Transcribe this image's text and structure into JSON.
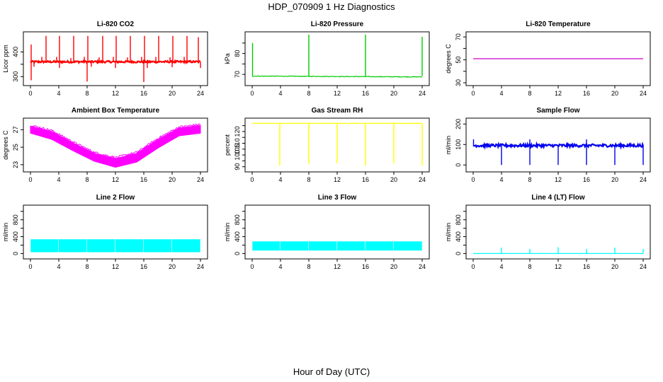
{
  "figure": {
    "title": "HDP_070909  1 Hz Diagnostics",
    "xlabel": "Hour of Day (UTC)"
  },
  "chart_data": [
    {
      "type": "line",
      "title": "Li-820 CO2",
      "ylabel": "Licor ppm",
      "xlim": [
        0,
        24
      ],
      "ylim": [
        275,
        470
      ],
      "xticks": [
        0,
        4,
        8,
        12,
        16,
        20,
        24
      ],
      "yticks": [
        300,
        350,
        400
      ],
      "ytick_labels": [
        "300",
        "",
        "400"
      ],
      "color": "#ff0000",
      "pattern": "baseline_spikes",
      "baseline": 360,
      "noise": 4,
      "spikes_up": [
        {
          "x": 0.1,
          "y": 430
        },
        {
          "x": 1.6,
          "y": 380
        },
        {
          "x": 2.2,
          "y": 465
        },
        {
          "x": 3.7,
          "y": 380
        },
        {
          "x": 4.1,
          "y": 465
        },
        {
          "x": 5.7,
          "y": 375
        },
        {
          "x": 6.1,
          "y": 465
        },
        {
          "x": 7.6,
          "y": 380
        },
        {
          "x": 8.1,
          "y": 465
        },
        {
          "x": 9.7,
          "y": 378
        },
        {
          "x": 10.2,
          "y": 465
        },
        {
          "x": 11.7,
          "y": 380
        },
        {
          "x": 12.1,
          "y": 465
        },
        {
          "x": 13.7,
          "y": 378
        },
        {
          "x": 14.1,
          "y": 465
        },
        {
          "x": 15.7,
          "y": 380
        },
        {
          "x": 16.1,
          "y": 465
        },
        {
          "x": 17.7,
          "y": 380
        },
        {
          "x": 18.1,
          "y": 465
        },
        {
          "x": 19.7,
          "y": 378
        },
        {
          "x": 20.1,
          "y": 465
        },
        {
          "x": 21.7,
          "y": 380
        },
        {
          "x": 22.1,
          "y": 465
        },
        {
          "x": 23.7,
          "y": 460
        }
      ],
      "spikes_down": [
        {
          "x": 0.1,
          "y": 285
        },
        {
          "x": 0.5,
          "y": 340
        },
        {
          "x": 4.1,
          "y": 335
        },
        {
          "x": 8.0,
          "y": 280
        },
        {
          "x": 8.6,
          "y": 340
        },
        {
          "x": 12.0,
          "y": 335
        },
        {
          "x": 16.0,
          "y": 278
        },
        {
          "x": 16.5,
          "y": 335
        },
        {
          "x": 20.0,
          "y": 338
        },
        {
          "x": 24.0,
          "y": 335
        }
      ]
    },
    {
      "type": "line",
      "title": "Li-820 Pressure",
      "ylabel": "kPa",
      "xlim": [
        0,
        24
      ],
      "ylim": [
        66,
        89
      ],
      "xticks": [
        0,
        4,
        8,
        12,
        16,
        20,
        24
      ],
      "yticks": [
        70,
        75,
        80,
        85
      ],
      "ytick_labels": [
        "70",
        "",
        "80",
        ""
      ],
      "color": "#00cc00",
      "pattern": "baseline_spikes",
      "baseline": 69.2,
      "baseline_end": 68.8,
      "noise": 0.15,
      "spikes_up": [
        {
          "x": 0.05,
          "y": 85
        },
        {
          "x": 8.0,
          "y": 89
        },
        {
          "x": 16.0,
          "y": 89
        },
        {
          "x": 24.0,
          "y": 88
        }
      ],
      "spikes_down": []
    },
    {
      "type": "line",
      "title": "Li-820 Temperature",
      "ylabel": "degrees C",
      "xlim": [
        0,
        24
      ],
      "ylim": [
        30,
        72
      ],
      "xticks": [
        0,
        4,
        8,
        12,
        16,
        20,
        24
      ],
      "yticks": [
        30,
        40,
        50,
        60,
        70
      ],
      "ytick_labels": [
        "30",
        "",
        "50",
        "",
        "70"
      ],
      "color": "#cc00cc",
      "pattern": "baseline_spikes",
      "baseline": 51,
      "noise": 0,
      "spikes_up": [],
      "spikes_down": []
    },
    {
      "type": "line",
      "title": "Ambient Box Temperature",
      "ylabel": "degrees C",
      "xlim": [
        0,
        24
      ],
      "ylim": [
        22.5,
        28
      ],
      "xticks": [
        0,
        4,
        8,
        12,
        16,
        20,
        24
      ],
      "yticks": [
        23,
        25,
        27
      ],
      "ytick_labels": [
        "23",
        "25",
        "27"
      ],
      "color": "#ff00ff",
      "pattern": "band",
      "upper": [
        {
          "x": 0,
          "y": 27.4
        },
        {
          "x": 3,
          "y": 26.8
        },
        {
          "x": 6,
          "y": 25.5
        },
        {
          "x": 9,
          "y": 24.3
        },
        {
          "x": 12,
          "y": 23.7
        },
        {
          "x": 15,
          "y": 24.3
        },
        {
          "x": 18,
          "y": 25.9
        },
        {
          "x": 21,
          "y": 27.2
        },
        {
          "x": 24,
          "y": 27.5
        }
      ],
      "lower": [
        {
          "x": 0,
          "y": 26.6
        },
        {
          "x": 3,
          "y": 25.9
        },
        {
          "x": 6,
          "y": 24.6
        },
        {
          "x": 9,
          "y": 23.4
        },
        {
          "x": 12,
          "y": 22.7
        },
        {
          "x": 15,
          "y": 23.3
        },
        {
          "x": 18,
          "y": 24.9
        },
        {
          "x": 21,
          "y": 26.3
        },
        {
          "x": 24,
          "y": 26.6
        }
      ]
    },
    {
      "type": "line",
      "title": "Gas Stream RH",
      "ylabel": "percent",
      "xlim": [
        0,
        24
      ],
      "ylim": [
        88,
        129
      ],
      "xticks": [
        0,
        4,
        8,
        12,
        16,
        20,
        24
      ],
      "yticks": [
        90,
        95,
        100,
        105,
        110,
        115,
        120,
        125
      ],
      "ytick_labels": [
        "90",
        "",
        "100",
        "105",
        "110",
        "",
        "120",
        ""
      ],
      "color": "#ffff00",
      "pattern": "baseline_spikes",
      "baseline": 127,
      "noise": 0.2,
      "spikes_up": [],
      "spikes_down": [
        {
          "x": 3.9,
          "y": 91
        },
        {
          "x": 8.0,
          "y": 92
        },
        {
          "x": 12.0,
          "y": 93
        },
        {
          "x": 16.0,
          "y": 91
        },
        {
          "x": 20.0,
          "y": 93
        },
        {
          "x": 24.0,
          "y": 91
        }
      ]
    },
    {
      "type": "line",
      "title": "Sample Flow",
      "ylabel": "ml/min",
      "xlim": [
        0,
        24
      ],
      "ylim": [
        -20,
        215
      ],
      "xticks": [
        0,
        4,
        8,
        12,
        16,
        20,
        24
      ],
      "yticks": [
        0,
        100,
        200
      ],
      "ytick_labels": [
        "0",
        "100",
        "200"
      ],
      "color": "#0000ee",
      "pattern": "baseline_spikes",
      "baseline": 95,
      "noise": 7,
      "spikes_up": [
        {
          "x": 0.05,
          "y": 125
        },
        {
          "x": 8.0,
          "y": 125
        },
        {
          "x": 16.0,
          "y": 125
        }
      ],
      "spikes_down": [
        {
          "x": 4.0,
          "y": 0
        },
        {
          "x": 8.0,
          "y": 0
        },
        {
          "x": 12.0,
          "y": 0
        },
        {
          "x": 16.0,
          "y": 0
        },
        {
          "x": 20.0,
          "y": 0
        },
        {
          "x": 24.0,
          "y": 0
        }
      ]
    },
    {
      "type": "line",
      "title": "Line 2 Flow",
      "ylabel": "ml/min",
      "xlim": [
        0,
        24
      ],
      "ylim": [
        -60,
        1080
      ],
      "xticks": [
        0,
        4,
        8,
        12,
        16,
        20,
        24
      ],
      "yticks": [
        0,
        200,
        400,
        600,
        800,
        1000
      ],
      "ytick_labels": [
        "0",
        "",
        "400",
        "",
        "800",
        ""
      ],
      "color": "#00ffff",
      "pattern": "blocks",
      "low": 40,
      "high": 330,
      "gaps": [
        {
          "x": 0.0
        },
        {
          "x": 3.95
        },
        {
          "x": 7.95
        },
        {
          "x": 11.95
        },
        {
          "x": 15.95
        },
        {
          "x": 19.95
        },
        {
          "x": 24.0
        }
      ]
    },
    {
      "type": "line",
      "title": "Line 3 Flow",
      "ylabel": "ml/min",
      "xlim": [
        0,
        24
      ],
      "ylim": [
        -60,
        1080
      ],
      "xticks": [
        0,
        4,
        8,
        12,
        16,
        20,
        24
      ],
      "yticks": [
        0,
        200,
        400,
        600,
        800,
        1000
      ],
      "ytick_labels": [
        "0",
        "",
        "400",
        "",
        "800",
        ""
      ],
      "color": "#00ffff",
      "pattern": "blocks",
      "low": 80,
      "high": 280,
      "gaps": [
        {
          "x": 0.0
        },
        {
          "x": 3.95
        },
        {
          "x": 7.95
        },
        {
          "x": 11.95
        },
        {
          "x": 15.95
        },
        {
          "x": 19.95
        },
        {
          "x": 24.0
        }
      ]
    },
    {
      "type": "line",
      "title": "Line 4 (LT) Flow",
      "ylabel": "ml/min",
      "xlim": [
        0,
        24
      ],
      "ylim": [
        -60,
        1080
      ],
      "xticks": [
        0,
        4,
        8,
        12,
        16,
        20,
        24
      ],
      "yticks": [
        0,
        200,
        400,
        600,
        800,
        1000
      ],
      "ytick_labels": [
        "0",
        "",
        "400",
        "",
        "800",
        ""
      ],
      "color": "#00ffff",
      "pattern": "baseline_spikes",
      "baseline": 0,
      "noise": 0,
      "spikes_up": [
        {
          "x": 4.0,
          "y": 140
        },
        {
          "x": 8.0,
          "y": 110
        },
        {
          "x": 12.0,
          "y": 150
        },
        {
          "x": 16.0,
          "y": 110
        },
        {
          "x": 20.0,
          "y": 140
        },
        {
          "x": 24.0,
          "y": 110
        }
      ],
      "spikes_down": []
    }
  ]
}
